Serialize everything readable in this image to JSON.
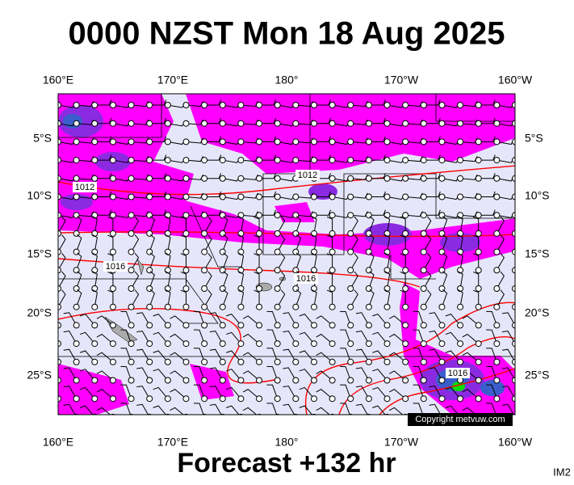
{
  "header": {
    "title": "0000 NZST Mon 18 Aug 2025"
  },
  "axes": {
    "top": [
      "160°E",
      "170°E",
      "180°",
      "170°W",
      "160°W"
    ],
    "bottom": [
      "160°E",
      "170°E",
      "180°",
      "170°W",
      "160°W"
    ],
    "left": [
      "5°S",
      "10°S",
      "15°S",
      "20°S",
      "25°S"
    ],
    "right": [
      "5°S",
      "10°S",
      "15°S",
      "20°S",
      "25°S"
    ]
  },
  "isobar_labels": [
    "1012",
    "1012",
    "1016",
    "1016",
    "1016"
  ],
  "copyright": "Copyright metvuw.com",
  "footer": "Forecast +132 hr",
  "corner": "IM2"
}
